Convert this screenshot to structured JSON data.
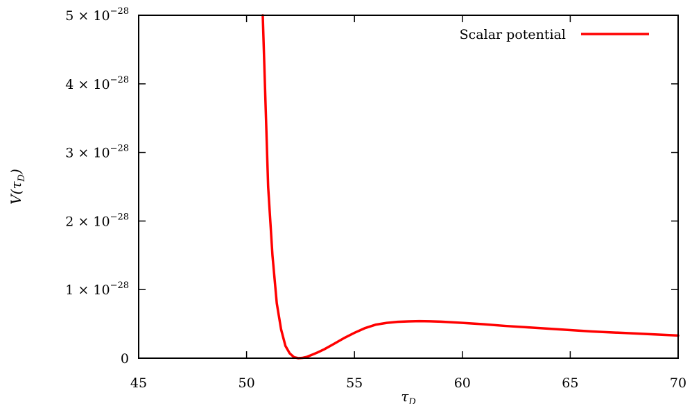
{
  "chart_data": {
    "type": "line",
    "title": "",
    "xlabel": "τ",
    "xlabel_sub": "D",
    "ylabel": "V(τ",
    "ylabel_sub": "D",
    "ylabel_close": ")",
    "xlim": [
      45,
      70
    ],
    "ylim": [
      0,
      5e-28
    ],
    "xticks": [
      {
        "value": 45,
        "label": "45"
      },
      {
        "value": 50,
        "label": "50"
      },
      {
        "value": 55,
        "label": "55"
      },
      {
        "value": 60,
        "label": "60"
      },
      {
        "value": 65,
        "label": "65"
      },
      {
        "value": 70,
        "label": "70"
      }
    ],
    "yticks": [
      {
        "value": 0,
        "mantissa": "0",
        "exp": ""
      },
      {
        "value": 1e-28,
        "mantissa": "1 × 10",
        "exp": "−28"
      },
      {
        "value": 2e-28,
        "mantissa": "2 × 10",
        "exp": "−28"
      },
      {
        "value": 3e-28,
        "mantissa": "3 × 10",
        "exp": "−28"
      },
      {
        "value": 4e-28,
        "mantissa": "4 × 10",
        "exp": "−28"
      },
      {
        "value": 5e-28,
        "mantissa": "5 × 10",
        "exp": "−28"
      }
    ],
    "grid": false,
    "legend_position": "top-right",
    "series": [
      {
        "name": "Scalar potential",
        "color": "#ff0000",
        "x": [
          50.75,
          50.8,
          50.9,
          51.0,
          51.2,
          51.4,
          51.6,
          51.8,
          52.0,
          52.2,
          52.4,
          52.6,
          52.8,
          53.0,
          53.3,
          53.6,
          54.0,
          54.5,
          55.0,
          55.5,
          56.0,
          56.5,
          57.0,
          57.5,
          58.0,
          58.5,
          59.0,
          60.0,
          61.0,
          62.0,
          63.0,
          64.0,
          65.0,
          66.0,
          67.0,
          68.0,
          69.0,
          70.0
        ],
        "y": [
          5e-28,
          4.5e-28,
          3.5e-28,
          2.5e-28,
          1.5e-28,
          8e-29,
          4.2e-29,
          1.8e-29,
          7e-30,
          1.5e-30,
          0.0,
          5e-31,
          2e-30,
          4.5e-30,
          8.5e-30,
          1.3e-29,
          2e-29,
          2.9e-29,
          3.7e-29,
          4.4e-29,
          4.9e-29,
          5.15e-29,
          5.3e-29,
          5.37e-29,
          5.4e-29,
          5.38e-29,
          5.33e-29,
          5.15e-29,
          4.95e-29,
          4.7e-29,
          4.5e-29,
          4.3e-29,
          4.1e-29,
          3.9e-29,
          3.75e-29,
          3.6e-29,
          3.45e-29,
          3.3e-29
        ]
      }
    ]
  }
}
